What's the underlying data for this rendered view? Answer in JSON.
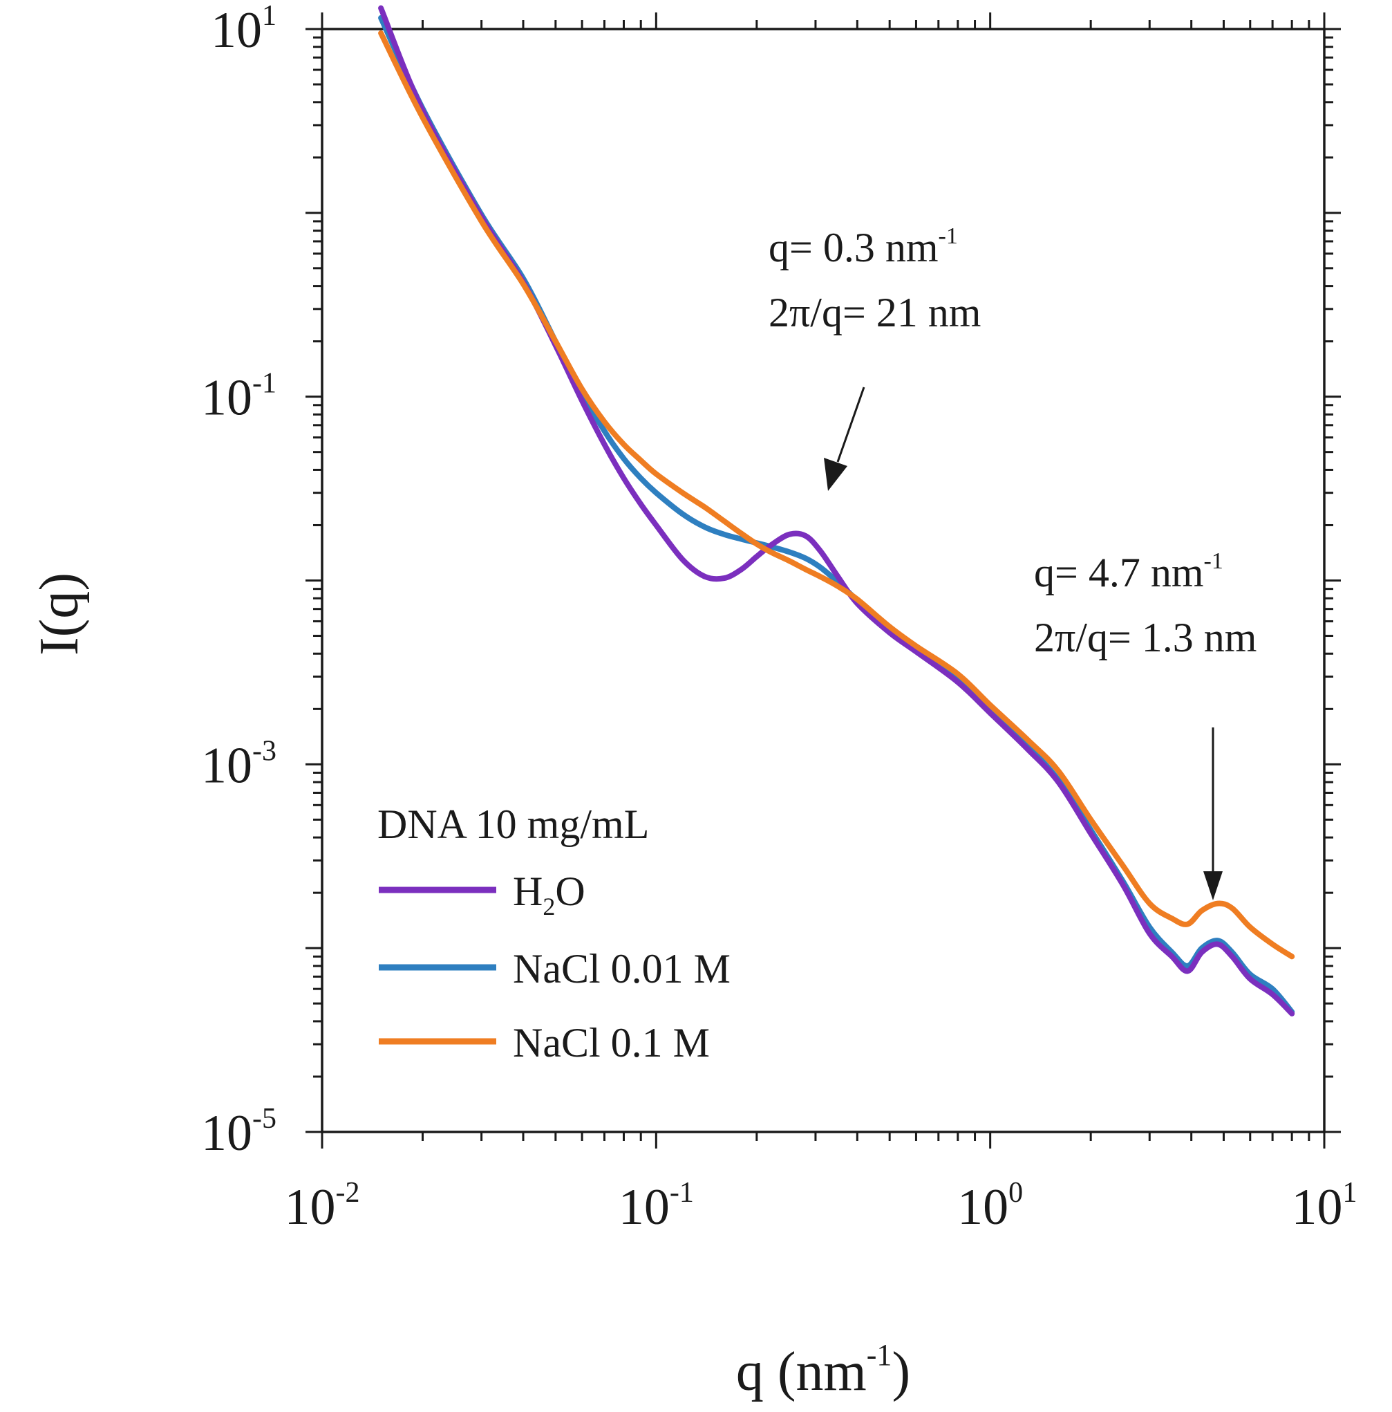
{
  "chart_data": {
    "type": "line",
    "x_scale": "log",
    "y_scale": "log",
    "xlim": [
      0.01,
      10
    ],
    "ylim": [
      1e-05,
      10
    ],
    "xlabel": {
      "base": "q (nm",
      "sup": "-1",
      "suffix": ")"
    },
    "ylabel": "I(q)",
    "x_ticks": [
      {
        "value": 0.01,
        "base": "10",
        "exp": "-2"
      },
      {
        "value": 0.1,
        "base": "10",
        "exp": "-1"
      },
      {
        "value": 1,
        "base": "10",
        "exp": "0"
      },
      {
        "value": 10,
        "base": "10",
        "exp": "1"
      }
    ],
    "y_ticks": [
      {
        "value": 10,
        "base": "10",
        "exp": "1"
      },
      {
        "value": 0.1,
        "base": "10",
        "exp": "-1"
      },
      {
        "value": 0.001,
        "base": "10",
        "exp": "-3"
      },
      {
        "value": 1e-05,
        "base": "10",
        "exp": "-5"
      }
    ],
    "legend": {
      "title": "DNA 10 mg/mL",
      "position": "bottom-left",
      "entries": [
        {
          "base": "H",
          "sub": "2",
          "suffix": "O",
          "color": "#7b2fbe"
        },
        {
          "base": "NaCl 0.01 M",
          "sub": "",
          "suffix": "",
          "color": "#2e7fc0"
        },
        {
          "base": "NaCl 0.1 M",
          "sub": "",
          "suffix": "",
          "color": "#ef7d22"
        }
      ]
    },
    "annotations": [
      {
        "line1_base": "q= 0.3 nm",
        "line1_sup": "-1",
        "line2": "2π/q= 21 nm"
      },
      {
        "line1_base": "q= 4.7  nm",
        "line1_sup": "-1",
        "line2": "2π/q= 1.3 nm"
      }
    ],
    "series": [
      {
        "color": "#7b2fbe",
        "x": [
          0.015,
          0.02,
          0.03,
          0.04,
          0.05,
          0.06,
          0.07,
          0.08,
          0.09,
          0.1,
          0.12,
          0.14,
          0.16,
          0.18,
          0.2,
          0.22,
          0.25,
          0.28,
          0.31,
          0.35,
          0.4,
          0.5,
          0.6,
          0.8,
          1.0,
          1.3,
          1.6,
          2.0,
          2.5,
          3.0,
          3.5,
          3.9,
          4.3,
          4.8,
          5.3,
          6.0,
          7.0,
          8.0
        ],
        "y": [
          13,
          3.6,
          0.95,
          0.42,
          0.19,
          0.095,
          0.055,
          0.036,
          0.026,
          0.02,
          0.013,
          0.0105,
          0.0103,
          0.0115,
          0.0135,
          0.0155,
          0.0178,
          0.0175,
          0.0145,
          0.0105,
          0.0075,
          0.0052,
          0.0041,
          0.0028,
          0.0019,
          0.0012,
          0.0008,
          0.00042,
          0.00022,
          0.00012,
          9e-05,
          7.5e-05,
          9.5e-05,
          0.000105,
          9e-05,
          6.8e-05,
          5.6e-05,
          4.4e-05
        ]
      },
      {
        "color": "#2e7fc0",
        "x": [
          0.015,
          0.02,
          0.03,
          0.04,
          0.05,
          0.06,
          0.07,
          0.08,
          0.09,
          0.1,
          0.12,
          0.14,
          0.16,
          0.18,
          0.2,
          0.22,
          0.25,
          0.28,
          0.31,
          0.35,
          0.4,
          0.5,
          0.6,
          0.8,
          1.0,
          1.3,
          1.6,
          2.0,
          2.5,
          3.0,
          3.5,
          3.9,
          4.3,
          4.8,
          5.3,
          6.0,
          7.0,
          8.0
        ],
        "y": [
          11.5,
          3.7,
          0.98,
          0.44,
          0.2,
          0.105,
          0.065,
          0.046,
          0.036,
          0.03,
          0.023,
          0.0195,
          0.0178,
          0.0168,
          0.016,
          0.0153,
          0.0143,
          0.0132,
          0.0118,
          0.0098,
          0.0078,
          0.0054,
          0.0042,
          0.0029,
          0.002,
          0.00125,
          0.00082,
          0.00044,
          0.00023,
          0.00013,
          9.5e-05,
          8e-05,
          0.0001,
          0.00011,
          9.5e-05,
          7.2e-05,
          6e-05,
          4.5e-05
        ]
      },
      {
        "color": "#ef7d22",
        "x": [
          0.015,
          0.02,
          0.03,
          0.04,
          0.05,
          0.06,
          0.07,
          0.08,
          0.09,
          0.1,
          0.12,
          0.14,
          0.16,
          0.18,
          0.2,
          0.22,
          0.25,
          0.28,
          0.31,
          0.35,
          0.4,
          0.5,
          0.6,
          0.8,
          1.0,
          1.3,
          1.6,
          2.0,
          2.5,
          3.0,
          3.5,
          3.9,
          4.3,
          4.8,
          5.3,
          6.0,
          7.0,
          8.0
        ],
        "y": [
          9.5,
          3.3,
          0.9,
          0.41,
          0.2,
          0.11,
          0.073,
          0.055,
          0.045,
          0.038,
          0.03,
          0.025,
          0.021,
          0.018,
          0.0158,
          0.0143,
          0.0128,
          0.0115,
          0.0105,
          0.0093,
          0.0079,
          0.0056,
          0.0044,
          0.0031,
          0.0021,
          0.00135,
          0.00092,
          0.0005,
          0.00028,
          0.000175,
          0.000145,
          0.000135,
          0.00016,
          0.000175,
          0.000165,
          0.00013,
          0.000105,
          9e-05
        ]
      }
    ]
  }
}
